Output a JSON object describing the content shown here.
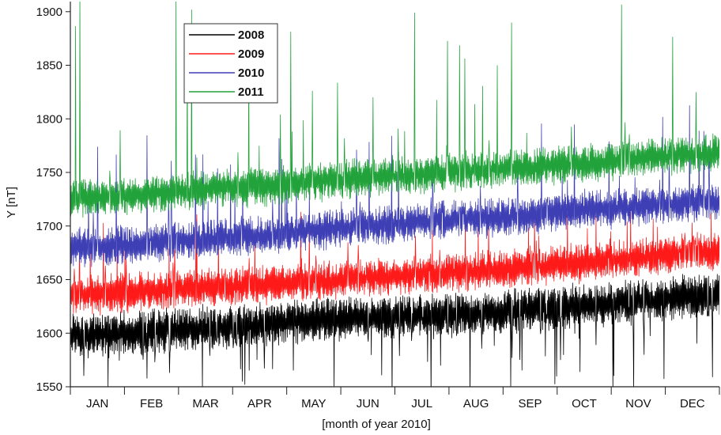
{
  "chart_data": {
    "type": "line",
    "title": "",
    "xlabel": "[month of year 2010]",
    "ylabel": "Y [nT]",
    "categories": [
      "JAN",
      "FEB",
      "MAR",
      "APR",
      "MAY",
      "JUN",
      "JUL",
      "AUG",
      "SEP",
      "OCT",
      "NOV",
      "DEC"
    ],
    "ylim": [
      1550,
      1905
    ],
    "yticks": [
      1550,
      1600,
      1650,
      1700,
      1750,
      1800,
      1850,
      1900
    ],
    "grid": false,
    "legend_position": "top-left",
    "series": [
      {
        "name": "2008",
        "color": "#000000",
        "baseline_monthly": [
          1598,
          1602,
          1605,
          1608,
          1612,
          1614,
          1616,
          1618,
          1622,
          1626,
          1630,
          1634
        ],
        "spikes_down_to": 1555
      },
      {
        "name": "2009",
        "color": "#ff1a1a",
        "baseline_monthly": [
          1636,
          1640,
          1643,
          1645,
          1648,
          1652,
          1655,
          1658,
          1662,
          1666,
          1670,
          1676
        ],
        "spikes_up_to": 1700
      },
      {
        "name": "2010",
        "color": "#3f3fb5",
        "baseline_monthly": [
          1680,
          1684,
          1688,
          1691,
          1695,
          1700,
          1704,
          1707,
          1710,
          1715,
          1718,
          1722
        ],
        "spikes_up_to": 1800
      },
      {
        "name": "2011",
        "color": "#22a23a",
        "baseline_monthly": [
          1726,
          1730,
          1734,
          1737,
          1741,
          1745,
          1748,
          1752,
          1755,
          1758,
          1763,
          1767
        ],
        "spikes_up_to": 1910
      }
    ]
  }
}
